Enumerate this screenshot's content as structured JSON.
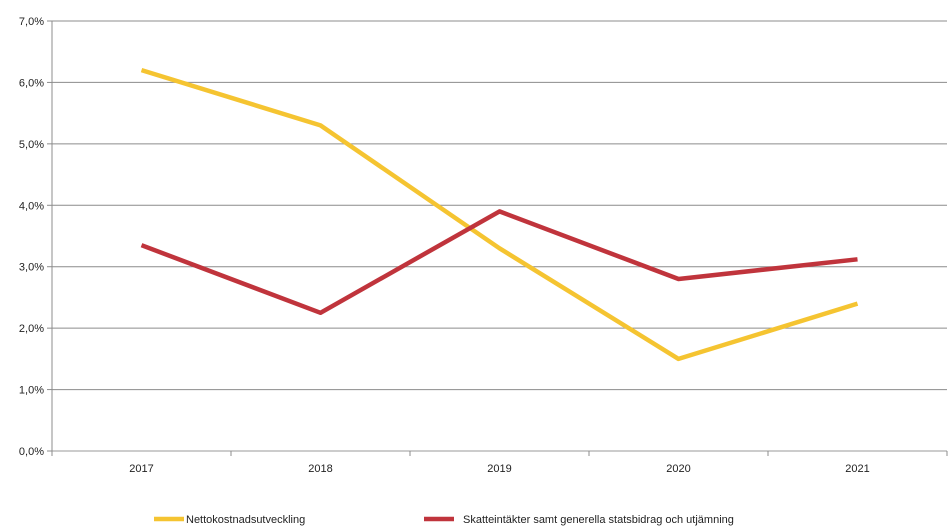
{
  "chart_data": {
    "type": "line",
    "categories": [
      "2017",
      "2018",
      "2019",
      "2020",
      "2021"
    ],
    "ylim": [
      0,
      7
    ],
    "y_ticks": [
      "0,0%",
      "1,0%",
      "2,0%",
      "3,0%",
      "4,0%",
      "5,0%",
      "6,0%",
      "7,0%"
    ],
    "grid": true,
    "legend_position": "bottom",
    "series": [
      {
        "name": "Nettokostnadsutveckling",
        "color": "#F5C431",
        "values": [
          6.2,
          5.3,
          3.3,
          1.5,
          2.4
        ]
      },
      {
        "name": "Skatteintäkter samt generella statsbidrag och utjämning",
        "color": "#C0343C",
        "values": [
          3.35,
          2.25,
          3.9,
          2.8,
          3.12
        ]
      }
    ]
  }
}
